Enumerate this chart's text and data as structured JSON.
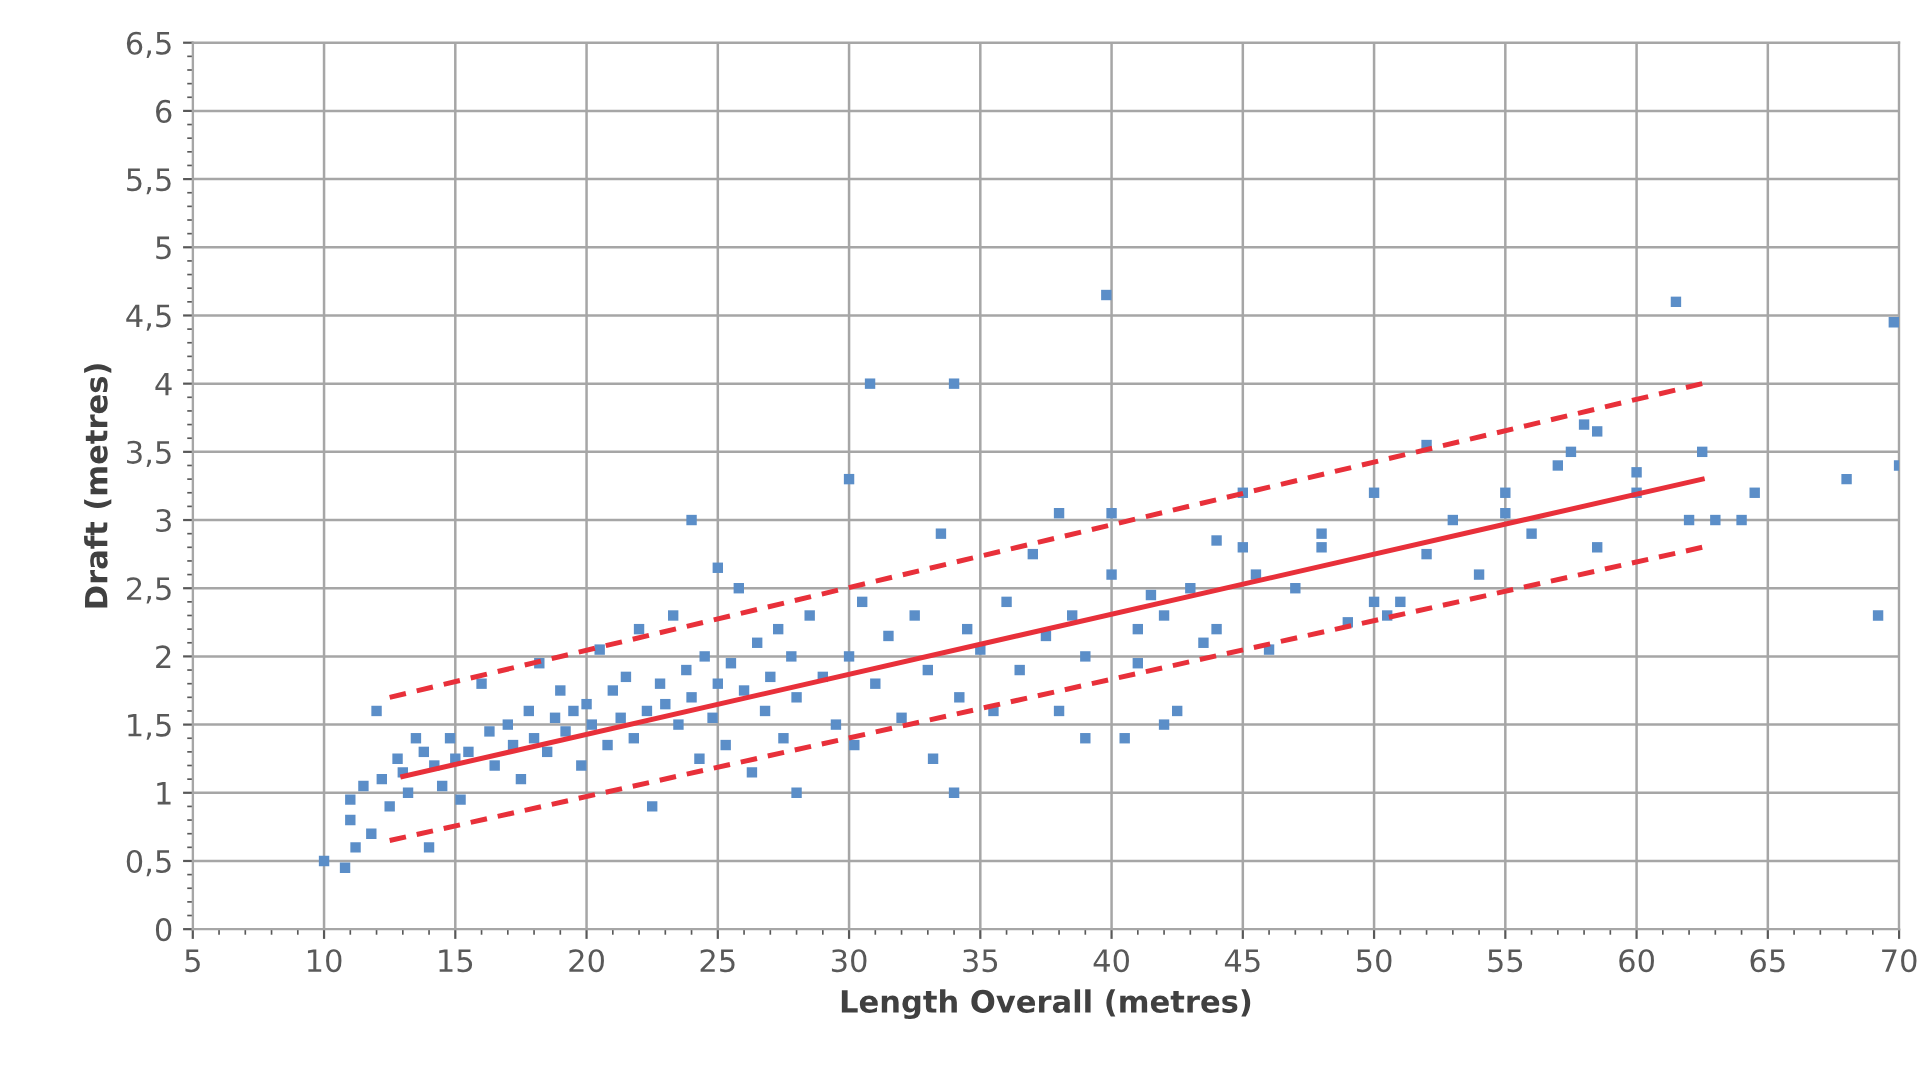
{
  "chart_data": {
    "type": "scatter",
    "xlabel": "Length Overall (metres)",
    "ylabel": "Draft (metres)",
    "xlim": [
      5,
      70
    ],
    "ylim": [
      0,
      6.5
    ],
    "xticks": [
      5,
      10,
      15,
      20,
      25,
      30,
      35,
      40,
      45,
      50,
      55,
      60,
      65,
      70
    ],
    "yticks": [
      0,
      {
        "value": 0.5,
        "label": "0,5"
      },
      1,
      {
        "value": 1.5,
        "label": "1,5"
      },
      2,
      {
        "value": 2.5,
        "label": "2,5"
      },
      3,
      {
        "value": 3.5,
        "label": "3,5"
      },
      4,
      {
        "value": 4.5,
        "label": "4,5"
      },
      5,
      {
        "value": 5.5,
        "label": "5,5"
      },
      6,
      {
        "value": 6.5,
        "label": "6,5"
      }
    ],
    "grid": true,
    "series": [
      {
        "marker": "square",
        "color": "#5b8ec8",
        "x": [
          10,
          10.8,
          11,
          11.2,
          11.5,
          11,
          11.8,
          12,
          12.2,
          12.5,
          12.8,
          13,
          13.2,
          13.5,
          13.8,
          14,
          14.2,
          14.5,
          14.8,
          15,
          15.2,
          15.5,
          16,
          16.3,
          16.5,
          17,
          17.2,
          17.5,
          17.8,
          18,
          18.2,
          18.5,
          18.8,
          19,
          19.2,
          19.5,
          19.8,
          20,
          20.2,
          20.5,
          20.8,
          21,
          21.3,
          21.5,
          21.8,
          22,
          22.3,
          22.5,
          22.8,
          23,
          23.3,
          23.5,
          23.8,
          24,
          24,
          24.3,
          24.5,
          24.8,
          25,
          25,
          25.3,
          25.5,
          25.8,
          26,
          26.3,
          26.5,
          26.8,
          27,
          27.3,
          27.5,
          27.8,
          28,
          28,
          28.5,
          29,
          29.5,
          30,
          30,
          30.2,
          30.5,
          30.8,
          31,
          31.5,
          32,
          32.5,
          33,
          33.2,
          33.5,
          34,
          34,
          34.2,
          34.5,
          35,
          35.5,
          36,
          36.5,
          37,
          37.5,
          38,
          38,
          38.5,
          39,
          39,
          39.8,
          40,
          40,
          40.5,
          41,
          41,
          41.5,
          42,
          42,
          42.5,
          43,
          43.5,
          44,
          44,
          45,
          45,
          45.5,
          46,
          47,
          48,
          48,
          49,
          50,
          50,
          50.5,
          51,
          52,
          52,
          53,
          54,
          55,
          55,
          56,
          57,
          57.5,
          58,
          58.5,
          58.5,
          60,
          60,
          61.5,
          62,
          62.5,
          63,
          64,
          64.5,
          68,
          69.2,
          69.8,
          70
        ],
        "values": [
          0.5,
          0.45,
          0.95,
          0.6,
          1.05,
          0.8,
          0.7,
          1.6,
          1.1,
          0.9,
          1.25,
          1.15,
          1.0,
          1.4,
          1.3,
          0.6,
          1.2,
          1.05,
          1.4,
          1.25,
          0.95,
          1.3,
          1.8,
          1.45,
          1.2,
          1.5,
          1.35,
          1.1,
          1.6,
          1.4,
          1.95,
          1.3,
          1.55,
          1.75,
          1.45,
          1.6,
          1.2,
          1.65,
          1.5,
          2.05,
          1.35,
          1.75,
          1.55,
          1.85,
          1.4,
          2.2,
          1.6,
          0.9,
          1.8,
          1.65,
          2.3,
          1.5,
          1.9,
          3.0,
          1.7,
          1.25,
          2.0,
          1.55,
          2.65,
          1.8,
          1.35,
          1.95,
          2.5,
          1.75,
          1.15,
          2.1,
          1.6,
          1.85,
          2.2,
          1.4,
          2.0,
          1.0,
          1.7,
          2.3,
          1.85,
          1.5,
          3.3,
          2.0,
          1.35,
          2.4,
          4.0,
          1.8,
          2.15,
          1.55,
          2.3,
          1.9,
          1.25,
          2.9,
          4.0,
          1.0,
          1.7,
          2.2,
          2.05,
          1.6,
          2.4,
          1.9,
          2.75,
          2.15,
          1.6,
          3.05,
          2.3,
          1.4,
          2.0,
          4.65,
          2.6,
          3.05,
          1.4,
          2.2,
          1.95,
          2.45,
          1.5,
          2.3,
          1.6,
          2.5,
          2.1,
          2.85,
          2.2,
          2.8,
          3.2,
          2.6,
          2.05,
          2.5,
          2.8,
          2.9,
          2.25,
          2.4,
          3.2,
          2.3,
          2.4,
          2.75,
          3.55,
          3.0,
          2.6,
          3.05,
          3.2,
          2.9,
          3.4,
          3.5,
          3.7,
          3.65,
          2.8,
          3.35,
          3.2,
          4.6,
          3.0,
          3.5,
          3.0,
          3.0,
          3.2,
          3.3,
          2.3,
          4.45,
          3.4
        ]
      },
      {
        "type": "line",
        "color": "#e8303a",
        "line_style": "solid",
        "x": [
          13,
          62.5
        ],
        "values": [
          1.12,
          3.3
        ]
      },
      {
        "type": "line",
        "color": "#e8303a",
        "line_style": "dashed",
        "x": [
          12.5,
          62.5
        ],
        "values": [
          1.7,
          4.0
        ]
      },
      {
        "type": "line",
        "color": "#e8303a",
        "line_style": "dashed",
        "x": [
          12.5,
          62.5
        ],
        "values": [
          0.65,
          2.8
        ]
      }
    ]
  }
}
